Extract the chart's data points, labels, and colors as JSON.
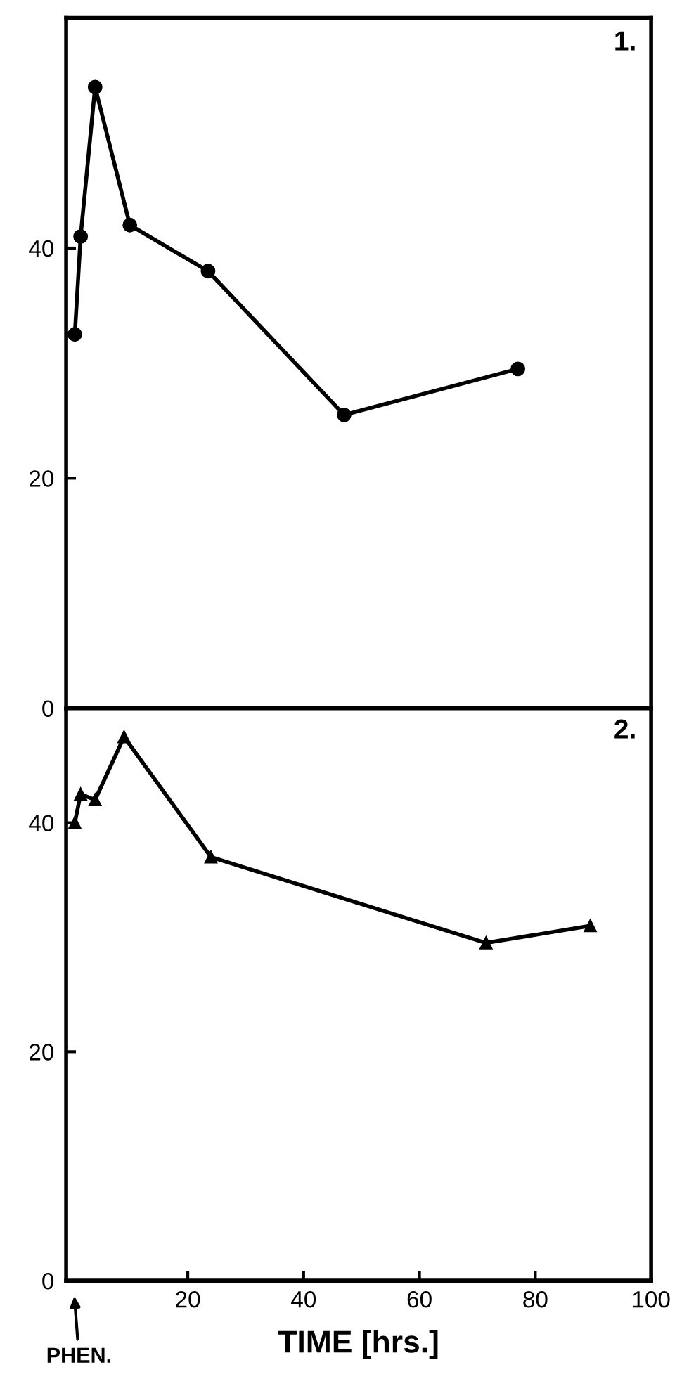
{
  "chart_data": [
    {
      "type": "line",
      "annotations": [
        "1."
      ],
      "x": [
        0.5,
        1.5,
        4,
        10,
        23.5,
        47,
        77
      ],
      "series": [
        {
          "color": "#000000",
          "values": [
            32.5,
            41,
            54,
            42,
            38,
            25.5,
            29.5
          ]
        }
      ],
      "xlim": [
        -1,
        100
      ],
      "ylim": [
        0,
        60
      ],
      "yticks": [
        0,
        20,
        40
      ],
      "tick_labels": "y",
      "marker": "circle",
      "line_style": "solid"
    },
    {
      "type": "line",
      "xlabel": "TIME [hrs.]",
      "annotations": [
        "2.",
        "PHEN."
      ],
      "x": [
        0.5,
        1.5,
        4,
        9,
        24,
        71.5,
        89.5
      ],
      "series": [
        {
          "color": "#000000",
          "values": [
            40,
            42.5,
            42,
            47.5,
            37,
            29.5,
            31
          ]
        }
      ],
      "xlim": [
        -1,
        100
      ],
      "ylim": [
        0,
        50
      ],
      "xticks": [
        20,
        40,
        60,
        80,
        100
      ],
      "yticks": [
        0,
        20,
        40
      ],
      "marker": "triangle",
      "line_style": "solid"
    }
  ]
}
